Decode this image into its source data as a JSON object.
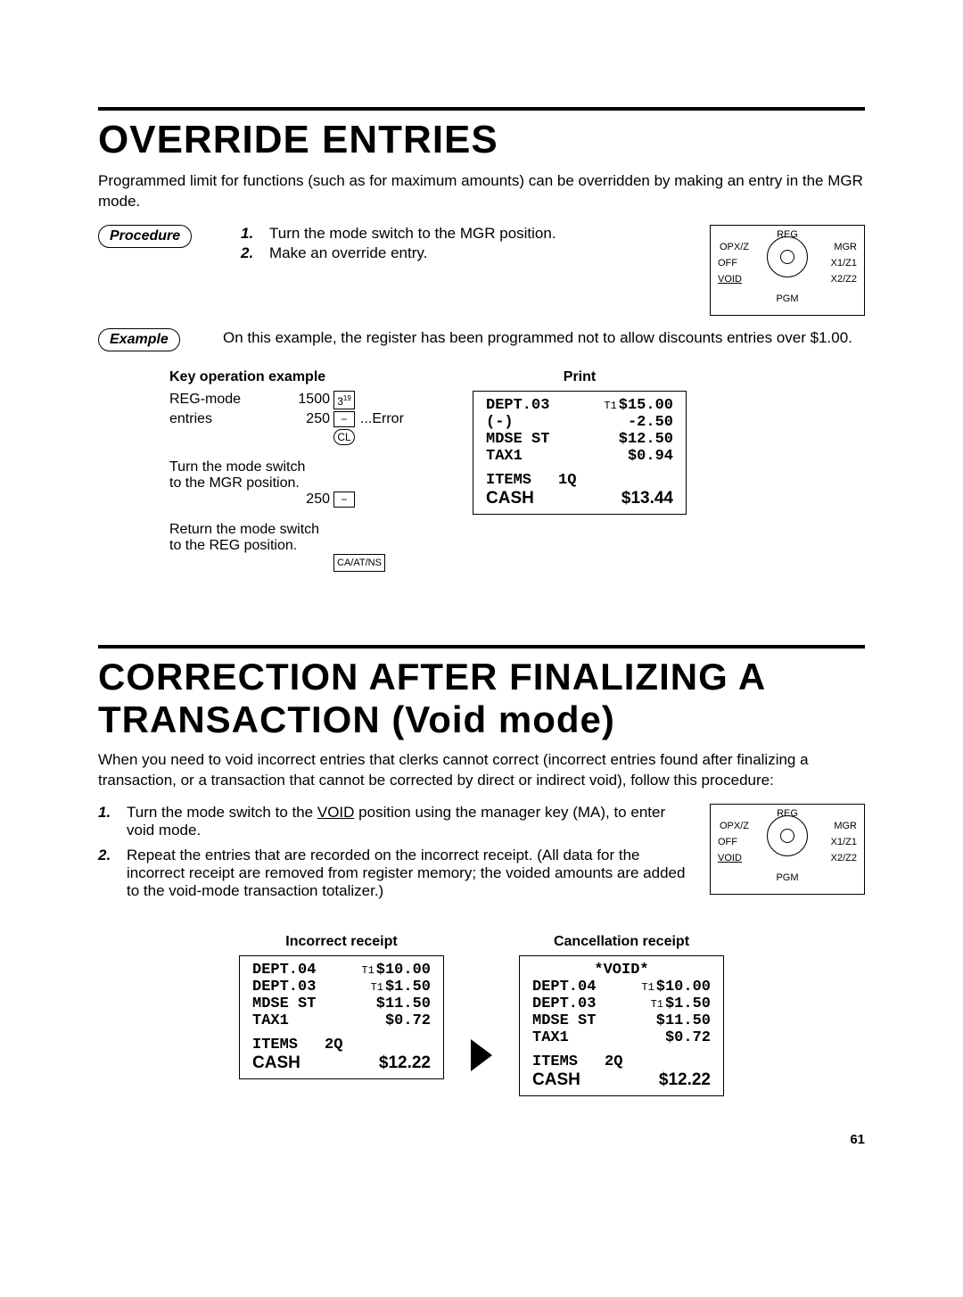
{
  "page_number": "61",
  "section1": {
    "title": "OVERRIDE ENTRIES",
    "intro": "Programmed limit for functions (such as for maximum amounts) can be overridden by making an entry in the MGR mode.",
    "procedure_label": "Procedure",
    "steps": [
      {
        "n": "1.",
        "t": "Turn the mode switch to the MGR position."
      },
      {
        "n": "2.",
        "t": "Make an override entry."
      }
    ],
    "example_label": "Example",
    "example_text": "On this example, the register has been programmed not to allow discounts entries over $1.00.",
    "kop_heading": "Key operation example",
    "kop": {
      "reg_label": "REG-mode",
      "entries_label": "entries",
      "v1": "1500",
      "k1": "3",
      "k1sup": "19",
      "v2": "250",
      "k2": "−",
      "k2note": "...Error",
      "k3": "CL",
      "turn1": "Turn the mode switch",
      "turn2": "to the MGR position.",
      "v3": "250",
      "k4": "−",
      "ret1": "Return the mode switch",
      "ret2": "to the REG position.",
      "k5": "CA/AT/NS"
    },
    "print_heading": "Print",
    "receipt": {
      "lines": [
        {
          "l": "DEPT.03",
          "t1": true,
          "r": "$15.00"
        },
        {
          "l": "(-)",
          "t1": false,
          "r": "-2.50"
        },
        {
          "l": "MDSE ST",
          "t1": false,
          "r": "$12.50"
        },
        {
          "l": "TAX1",
          "t1": false,
          "r": "$0.94"
        }
      ],
      "items_l": "ITEMS",
      "items_r": "1Q",
      "cash_l": "CASH",
      "cash_r": "$13.44"
    },
    "modeswitch": {
      "reg": "REG",
      "opxz": "OPX/Z",
      "off": "OFF",
      "void": "VOID",
      "pgm": "PGM",
      "mgr": "MGR",
      "x1z1": "X1/Z1",
      "x2z2": "X2/Z2"
    }
  },
  "section2": {
    "title": "CORRECTION AFTER FINALIZING A TRANSACTION  (Void mode)",
    "intro": "When you need to void incorrect entries that clerks cannot correct (incorrect entries found after finalizing a transaction, or a transaction that cannot be corrected by direct or indirect void), follow this procedure:",
    "steps": [
      {
        "n": "1.",
        "pre": "Turn the mode switch to the ",
        "u": "VOID",
        "post": " position using the manager key (MA), to enter void mode."
      },
      {
        "n": "2.",
        "pre": "Repeat the entries that are recorded on the incorrect receipt.  (All data for the incorrect receipt are removed from register memory; the voided amounts are added to the void-mode transaction totalizer.)",
        "u": "",
        "post": ""
      }
    ],
    "modeswitch": {
      "reg": "REG",
      "opxz": "OPX/Z",
      "off": "OFF",
      "void": "VOID",
      "pgm": "PGM",
      "mgr": "MGR",
      "x1z1": "X1/Z1",
      "x2z2": "X2/Z2"
    },
    "left_heading": "Incorrect receipt",
    "right_heading": "Cancellation receipt",
    "receipt_incorrect": {
      "void_header": "",
      "lines": [
        {
          "l": "DEPT.04",
          "t1": true,
          "r": "$10.00"
        },
        {
          "l": "DEPT.03",
          "t1": true,
          "r": "$1.50"
        },
        {
          "l": "MDSE ST",
          "t1": false,
          "r": "$11.50"
        },
        {
          "l": "TAX1",
          "t1": false,
          "r": "$0.72"
        }
      ],
      "items_l": "ITEMS",
      "items_r": "2Q",
      "cash_l": "CASH",
      "cash_r": "$12.22"
    },
    "receipt_cancel": {
      "void_header": "*VOID*",
      "lines": [
        {
          "l": "DEPT.04",
          "t1": true,
          "r": "$10.00"
        },
        {
          "l": "DEPT.03",
          "t1": true,
          "r": "$1.50"
        },
        {
          "l": "MDSE ST",
          "t1": false,
          "r": "$11.50"
        },
        {
          "l": "TAX1",
          "t1": false,
          "r": "$0.72"
        }
      ],
      "items_l": "ITEMS",
      "items_r": "2Q",
      "cash_l": "CASH",
      "cash_r": "$12.22"
    }
  }
}
